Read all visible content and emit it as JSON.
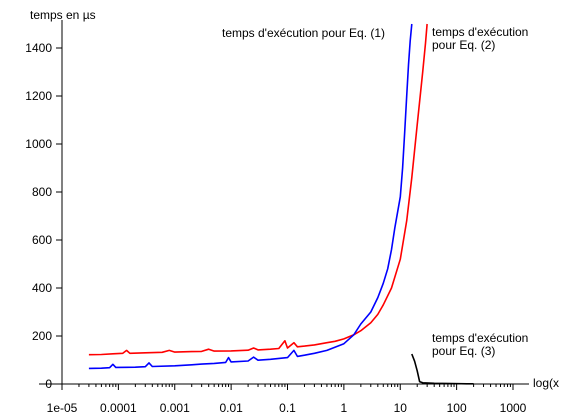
{
  "chart_data": {
    "type": "line",
    "xscale": "log",
    "xlim": [
      1e-05,
      1000
    ],
    "ylim": [
      0,
      1500
    ],
    "grid": false,
    "ylabel": "temps en µs",
    "xlabel": "log(x",
    "x_ticks": [
      {
        "value": 1e-05,
        "label": "1e-05"
      },
      {
        "value": 0.0001,
        "label": "0.0001"
      },
      {
        "value": 0.001,
        "label": "0.001"
      },
      {
        "value": 0.01,
        "label": "0.01"
      },
      {
        "value": 0.1,
        "label": "0.1"
      },
      {
        "value": 1,
        "label": "1"
      },
      {
        "value": 10,
        "label": "10"
      },
      {
        "value": 100,
        "label": "100"
      },
      {
        "value": 1000,
        "label": "1000"
      }
    ],
    "y_ticks": [
      {
        "value": 0,
        "label": "0"
      },
      {
        "value": 200,
        "label": "200"
      },
      {
        "value": 400,
        "label": "400"
      },
      {
        "value": 600,
        "label": "600"
      },
      {
        "value": 800,
        "label": "800"
      },
      {
        "value": 1000,
        "label": "1000"
      },
      {
        "value": 1200,
        "label": "1200"
      },
      {
        "value": 1400,
        "label": "1400"
      }
    ],
    "series": [
      {
        "color": "#ff0000",
        "points": [
          [
            3e-05,
            122
          ],
          [
            5e-05,
            123
          ],
          [
            8e-05,
            126
          ],
          [
            0.00012,
            128
          ],
          [
            0.00014,
            140
          ],
          [
            0.00016,
            128
          ],
          [
            0.0003,
            130
          ],
          [
            0.0006,
            132
          ],
          [
            0.0008,
            140
          ],
          [
            0.001,
            133
          ],
          [
            0.002,
            135
          ],
          [
            0.003,
            136
          ],
          [
            0.004,
            145
          ],
          [
            0.005,
            137
          ],
          [
            0.01,
            138
          ],
          [
            0.02,
            141
          ],
          [
            0.025,
            150
          ],
          [
            0.03,
            142
          ],
          [
            0.05,
            145
          ],
          [
            0.07,
            148
          ],
          [
            0.09,
            180
          ],
          [
            0.1,
            150
          ],
          [
            0.13,
            172
          ],
          [
            0.15,
            155
          ],
          [
            0.2,
            158
          ],
          [
            0.3,
            163
          ],
          [
            0.5,
            172
          ],
          [
            0.7,
            178
          ],
          [
            1,
            188
          ],
          [
            1.5,
            205
          ],
          [
            2,
            222
          ],
          [
            3,
            255
          ],
          [
            4,
            290
          ],
          [
            5,
            330
          ],
          [
            7,
            400
          ],
          [
            10,
            520
          ],
          [
            13,
            680
          ],
          [
            16,
            860
          ],
          [
            20,
            1080
          ],
          [
            25,
            1300
          ],
          [
            28,
            1420
          ],
          [
            30,
            1500
          ]
        ]
      },
      {
        "color": "#0000ff",
        "points": [
          [
            3e-05,
            65
          ],
          [
            5e-05,
            66
          ],
          [
            7e-05,
            68
          ],
          [
            8e-05,
            82
          ],
          [
            9e-05,
            69
          ],
          [
            0.0002,
            70
          ],
          [
            0.0003,
            72
          ],
          [
            0.00035,
            88
          ],
          [
            0.0004,
            73
          ],
          [
            0.001,
            76
          ],
          [
            0.002,
            80
          ],
          [
            0.003,
            83
          ],
          [
            0.005,
            86
          ],
          [
            0.008,
            90
          ],
          [
            0.009,
            110
          ],
          [
            0.01,
            92
          ],
          [
            0.02,
            96
          ],
          [
            0.025,
            112
          ],
          [
            0.03,
            99
          ],
          [
            0.05,
            103
          ],
          [
            0.1,
            110
          ],
          [
            0.13,
            140
          ],
          [
            0.15,
            115
          ],
          [
            0.2,
            120
          ],
          [
            0.3,
            128
          ],
          [
            0.5,
            140
          ],
          [
            1,
            168
          ],
          [
            1.5,
            205
          ],
          [
            2,
            250
          ],
          [
            3,
            300
          ],
          [
            4,
            360
          ],
          [
            5,
            420
          ],
          [
            6,
            480
          ],
          [
            7,
            560
          ],
          [
            8,
            650
          ],
          [
            10,
            780
          ],
          [
            11,
            900
          ],
          [
            12,
            1050
          ],
          [
            13,
            1200
          ],
          [
            14,
            1330
          ],
          [
            15,
            1430
          ],
          [
            16,
            1500
          ]
        ]
      },
      {
        "color": "#000000",
        "points": [
          [
            16,
            125
          ],
          [
            18,
            95
          ],
          [
            20,
            55
          ],
          [
            22,
            10
          ],
          [
            25,
            5
          ],
          [
            40,
            3
          ],
          [
            80,
            2
          ],
          [
            150,
            1
          ],
          [
            200,
            1
          ]
        ]
      }
    ],
    "annotations": [
      {
        "lines": [
          "temps d'exécution pour Eq. (1)"
        ]
      },
      {
        "lines": [
          "temps d'exécution",
          "pour Eq. (2)"
        ]
      },
      {
        "lines": [
          "temps d'exécution",
          "pour Eq. (3)"
        ]
      }
    ]
  }
}
